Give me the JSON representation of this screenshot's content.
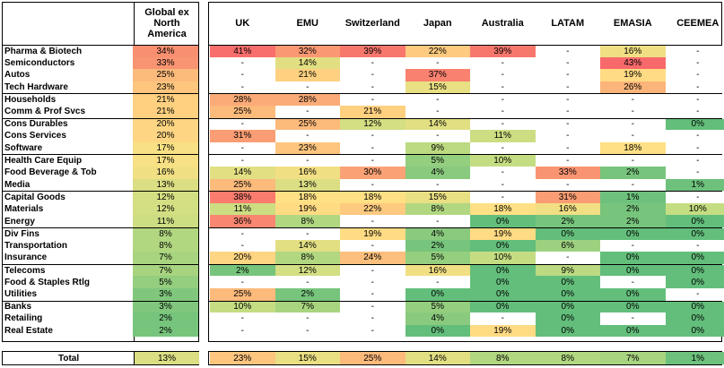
{
  "columns": {
    "global": "Global ex North America",
    "regions": [
      "UK",
      "EMU",
      "Switzerland",
      "Japan",
      "Australia",
      "LATAM",
      "EMASIA",
      "CEEMEA"
    ]
  },
  "rows": [
    {
      "sector": "Pharma & Biotech",
      "global": "34%",
      "values": [
        "41%",
        "32%",
        "39%",
        "22%",
        "39%",
        "-",
        "16%",
        "-"
      ]
    },
    {
      "sector": "Semiconductors",
      "global": "33%",
      "values": [
        "-",
        "14%",
        "-",
        "-",
        "-",
        "-",
        "43%",
        "-"
      ]
    },
    {
      "sector": "Autos",
      "global": "25%",
      "values": [
        "-",
        "21%",
        "-",
        "37%",
        "-",
        "-",
        "19%",
        "-"
      ]
    },
    {
      "sector": "Tech Hardware",
      "global": "23%",
      "values": [
        "-",
        "-",
        "-",
        "15%",
        "-",
        "-",
        "26%",
        "-"
      ]
    },
    {
      "sector": "Households",
      "global": "21%",
      "values": [
        "28%",
        "28%",
        "-",
        "-",
        "-",
        "-",
        "-",
        "-"
      ]
    },
    {
      "sector": "Comm & Prof Svcs",
      "global": "21%",
      "values": [
        "25%",
        "-",
        "21%",
        "-",
        "-",
        "-",
        "-",
        "-"
      ]
    },
    {
      "sector": "Cons Durables",
      "global": "20%",
      "values": [
        "-",
        "25%",
        "12%",
        "14%",
        "-",
        "-",
        "-",
        "0%"
      ]
    },
    {
      "sector": "Cons Services",
      "global": "20%",
      "values": [
        "31%",
        "-",
        "-",
        "-",
        "11%",
        "-",
        "-",
        "-"
      ]
    },
    {
      "sector": "Software",
      "global": "17%",
      "values": [
        "-",
        "23%",
        "-",
        "9%",
        "-",
        "-",
        "18%",
        "-"
      ]
    },
    {
      "sector": "Health Care Equip",
      "global": "17%",
      "values": [
        "-",
        "-",
        "-",
        "5%",
        "10%",
        "-",
        "-",
        "-"
      ]
    },
    {
      "sector": "Food Beverage & Tob",
      "global": "16%",
      "values": [
        "14%",
        "16%",
        "30%",
        "4%",
        "-",
        "33%",
        "2%",
        "-"
      ]
    },
    {
      "sector": "Media",
      "global": "13%",
      "values": [
        "25%",
        "13%",
        "-",
        "-",
        "-",
        "-",
        "-",
        "1%"
      ]
    },
    {
      "sector": "Capital Goods",
      "global": "12%",
      "values": [
        "38%",
        "18%",
        "18%",
        "15%",
        "-",
        "31%",
        "1%",
        "-"
      ]
    },
    {
      "sector": "Materials",
      "global": "12%",
      "values": [
        "11%",
        "19%",
        "22%",
        "8%",
        "18%",
        "16%",
        "2%",
        "10%"
      ]
    },
    {
      "sector": "Energy",
      "global": "11%",
      "values": [
        "36%",
        "8%",
        "-",
        "-",
        "0%",
        "2%",
        "2%",
        "0%"
      ]
    },
    {
      "sector": "Div Fins",
      "global": "8%",
      "values": [
        "-",
        "-",
        "19%",
        "4%",
        "19%",
        "0%",
        "0%",
        "0%"
      ]
    },
    {
      "sector": "Transportation",
      "global": "8%",
      "values": [
        "-",
        "14%",
        "-",
        "2%",
        "0%",
        "6%",
        "-",
        "-"
      ]
    },
    {
      "sector": "Insurance",
      "global": "7%",
      "values": [
        "20%",
        "8%",
        "24%",
        "5%",
        "10%",
        "-",
        "0%",
        "0%"
      ]
    },
    {
      "sector": "Telecoms",
      "global": "7%",
      "values": [
        "2%",
        "12%",
        "-",
        "16%",
        "0%",
        "9%",
        "0%",
        "0%"
      ]
    },
    {
      "sector": "Food & Staples Rtlg",
      "global": "5%",
      "values": [
        "-",
        "-",
        "-",
        "-",
        "0%",
        "0%",
        "-",
        "0%"
      ]
    },
    {
      "sector": "Utilities",
      "global": "3%",
      "values": [
        "25%",
        "2%",
        "-",
        "0%",
        "0%",
        "0%",
        "0%",
        "-"
      ]
    },
    {
      "sector": "Banks",
      "global": "3%",
      "values": [
        "10%",
        "7%",
        "-",
        "5%",
        "0%",
        "0%",
        "0%",
        "0%"
      ]
    },
    {
      "sector": "Retailing",
      "global": "2%",
      "values": [
        "-",
        "-",
        "-",
        "4%",
        "-",
        "0%",
        "-",
        "0%"
      ]
    },
    {
      "sector": "Real Estate",
      "global": "2%",
      "values": [
        "-",
        "-",
        "-",
        "0%",
        "19%",
        "0%",
        "0%",
        "0%"
      ]
    }
  ],
  "total": {
    "label": "Total",
    "global": "13%",
    "values": [
      "23%",
      "15%",
      "25%",
      "14%",
      "8%",
      "8%",
      "7%",
      "1%"
    ]
  },
  "colors": {
    "red": "#f8696b",
    "orange_red": "#f98f71",
    "orange": "#fbb47a",
    "yellow": "#ffe084",
    "light_green": "#c5dd82",
    "green": "#85c87c",
    "dark_green": "#63be7b"
  }
}
